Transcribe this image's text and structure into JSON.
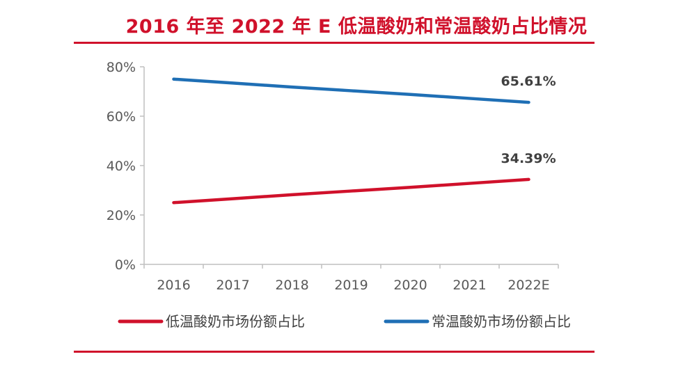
{
  "chart_data": {
    "type": "line",
    "title": "2016 年至 2022 年 E 低温酸奶和常温酸奶占比情况",
    "categories": [
      "2016",
      "2017",
      "2018",
      "2019",
      "2020",
      "2021",
      "2022E"
    ],
    "ylim": [
      0,
      80
    ],
    "yticks": [
      "0%",
      "20%",
      "40%",
      "60%",
      "80%"
    ],
    "series": [
      {
        "name": "低温酸奶市场份额占比",
        "color": "#d0112b",
        "values": [
          25.0,
          26.6,
          28.2,
          29.7,
          31.2,
          32.8,
          34.39
        ],
        "end_label": "34.39%"
      },
      {
        "name": "常温酸奶市场份额占比",
        "color": "#1f6fb5",
        "values": [
          75.0,
          73.4,
          71.8,
          70.3,
          68.8,
          67.2,
          65.61
        ],
        "end_label": "65.61%"
      }
    ],
    "legend_position": "bottom"
  }
}
